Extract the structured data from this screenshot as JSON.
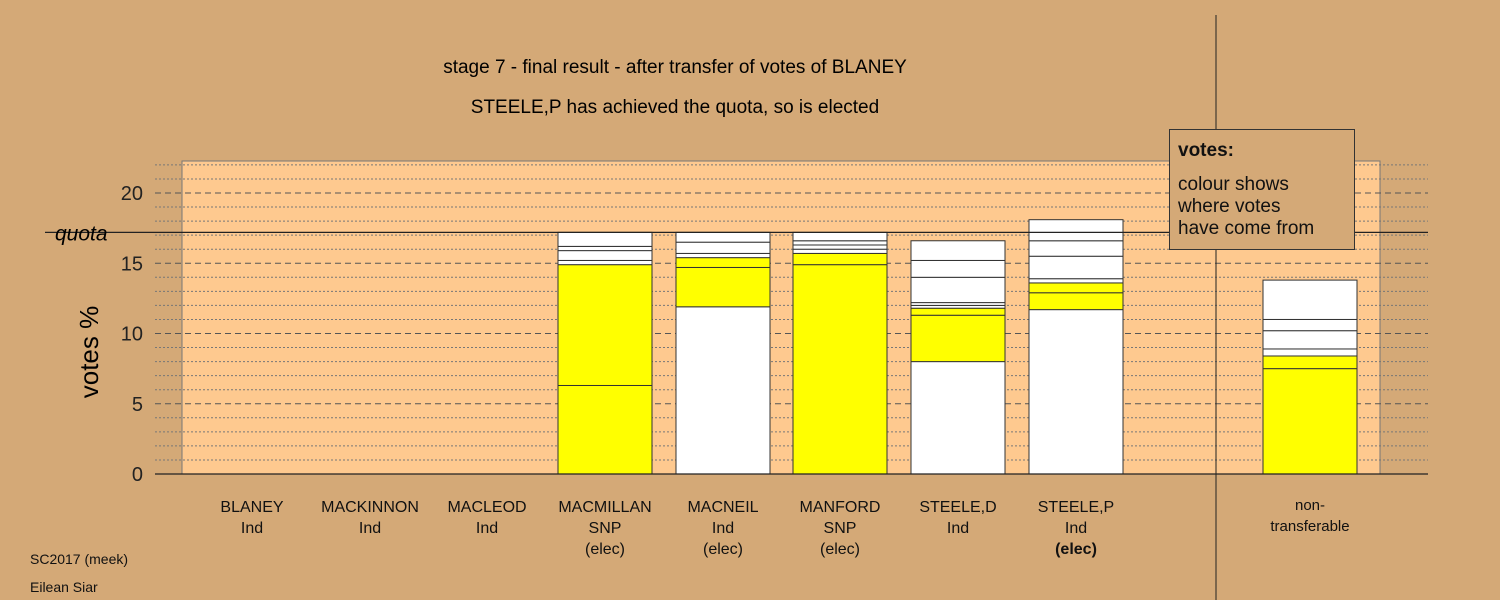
{
  "chart_data": {
    "type": "bar",
    "stacked": true,
    "title_line1": "stage 7 - final result - after transfer of votes of BLANEY",
    "title_line2": "STEELE,P has achieved the quota, so is elected",
    "ylabel": "votes %",
    "ylim": [
      0,
      22.5
    ],
    "yticks": [
      0,
      5,
      10,
      15,
      20
    ],
    "quota": 17.2,
    "quota_label": "quota",
    "grid": true,
    "colors": {
      "own": "#ffff00",
      "transfer": "#ffffff",
      "plot_bg": "#fec98f",
      "page_bg": "#d4a977"
    },
    "categories": [
      {
        "name": "BLANEY",
        "party": "Ind",
        "status": "",
        "segments": []
      },
      {
        "name": "MACKINNON",
        "party": "Ind",
        "status": "",
        "segments": []
      },
      {
        "name": "MACLEOD",
        "party": "Ind",
        "status": "",
        "segments": []
      },
      {
        "name": "MACMILLAN",
        "party": "SNP",
        "status": "(elec)",
        "segments": [
          {
            "value": 6.3,
            "color": "#ffff00"
          },
          {
            "value": 8.6,
            "color": "#ffff00"
          },
          {
            "value": 0.3,
            "color": "#ffffff"
          },
          {
            "value": 0.7,
            "color": "#ffffff"
          },
          {
            "value": 0.3,
            "color": "#ffffff"
          },
          {
            "value": 1.0,
            "color": "#ffffff"
          }
        ]
      },
      {
        "name": "MACNEIL",
        "party": "Ind",
        "status": "(elec)",
        "segments": [
          {
            "value": 11.9,
            "color": "#ffffff"
          },
          {
            "value": 2.8,
            "color": "#ffff00"
          },
          {
            "value": 0.7,
            "color": "#ffff00"
          },
          {
            "value": 0.3,
            "color": "#ffffff"
          },
          {
            "value": 0.8,
            "color": "#ffffff"
          },
          {
            "value": 0.7,
            "color": "#ffffff"
          }
        ]
      },
      {
        "name": "MANFORD",
        "party": "SNP",
        "status": "(elec)",
        "segments": [
          {
            "value": 14.9,
            "color": "#ffff00"
          },
          {
            "value": 0.8,
            "color": "#ffff00"
          },
          {
            "value": 0.3,
            "color": "#ffffff"
          },
          {
            "value": 0.3,
            "color": "#ffffff"
          },
          {
            "value": 0.3,
            "color": "#ffffff"
          },
          {
            "value": 0.6,
            "color": "#ffffff"
          }
        ]
      },
      {
        "name": "STEELE,D",
        "party": "Ind",
        "status": "",
        "segments": [
          {
            "value": 8.0,
            "color": "#ffffff"
          },
          {
            "value": 3.3,
            "color": "#ffff00"
          },
          {
            "value": 0.5,
            "color": "#ffff00"
          },
          {
            "value": 0.2,
            "color": "#ffffff"
          },
          {
            "value": 0.2,
            "color": "#ffffff"
          },
          {
            "value": 1.8,
            "color": "#ffffff"
          },
          {
            "value": 1.2,
            "color": "#ffffff"
          },
          {
            "value": 1.4,
            "color": "#ffffff"
          }
        ]
      },
      {
        "name": "STEELE,P",
        "party": "Ind",
        "status": "(elec)",
        "segments": [
          {
            "value": 11.7,
            "color": "#ffffff"
          },
          {
            "value": 1.2,
            "color": "#ffff00"
          },
          {
            "value": 0.7,
            "color": "#ffff00"
          },
          {
            "value": 0.3,
            "color": "#ffffff"
          },
          {
            "value": 1.6,
            "color": "#ffffff"
          },
          {
            "value": 1.1,
            "color": "#ffffff"
          },
          {
            "value": 1.5,
            "color": "#ffffff"
          }
        ]
      },
      {
        "name": "non-",
        "party": "transferable",
        "status": "",
        "segments": [
          {
            "value": 7.5,
            "color": "#ffff00"
          },
          {
            "value": 0.9,
            "color": "#ffff00"
          },
          {
            "value": 0.5,
            "color": "#ffffff"
          },
          {
            "value": 1.3,
            "color": "#ffffff"
          },
          {
            "value": 0.8,
            "color": "#ffffff"
          },
          {
            "value": 2.8,
            "color": "#ffffff"
          }
        ]
      }
    ]
  },
  "legend": {
    "title": "votes:",
    "line1": "colour shows",
    "line2": "where votes",
    "line3": "have come from"
  },
  "footer": {
    "line1": "SC2017 (meek)",
    "line2": "Eilean Siar"
  }
}
